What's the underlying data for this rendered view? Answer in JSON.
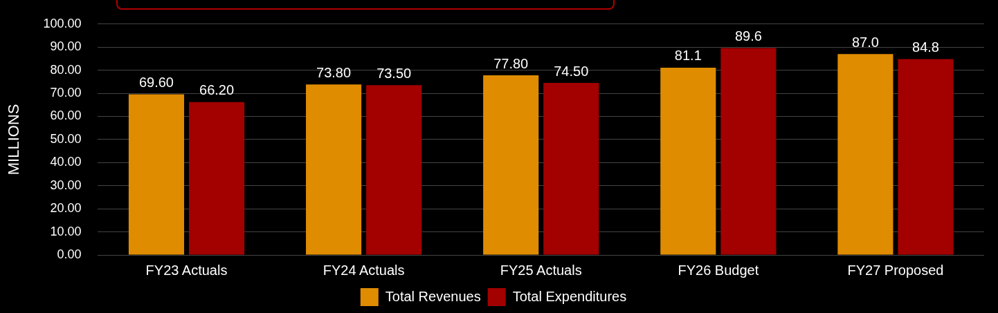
{
  "chart_data": {
    "type": "bar",
    "ylabel": "MILLIONS",
    "categories": [
      "FY23 Actuals",
      "FY24 Actuals",
      "FY25 Actuals",
      "FY26 Budget",
      "FY27 Proposed"
    ],
    "series": [
      {
        "name": "Total Revenues",
        "color": "#e08c00",
        "values": [
          69.6,
          73.8,
          77.8,
          81.1,
          87.0
        ],
        "value_labels": [
          "69.60",
          "73.80",
          "77.80",
          "81.1",
          "87.0"
        ]
      },
      {
        "name": "Total Expenditures",
        "color": "#a30000",
        "values": [
          66.2,
          73.5,
          74.5,
          89.6,
          84.8
        ],
        "value_labels": [
          "66.20",
          "73.50",
          "74.50",
          "89.6",
          "84.8"
        ]
      }
    ],
    "ylim": [
      0,
      100
    ],
    "yticks": [
      {
        "value": 0,
        "label": "0.00"
      },
      {
        "value": 10,
        "label": "10.00"
      },
      {
        "value": 20,
        "label": "20.00"
      },
      {
        "value": 30,
        "label": "30.00"
      },
      {
        "value": 40,
        "label": "40.00"
      },
      {
        "value": 50,
        "label": "50.00"
      },
      {
        "value": 60,
        "label": "60.00"
      },
      {
        "value": 70,
        "label": "70.00"
      },
      {
        "value": 80,
        "label": "80.00"
      },
      {
        "value": 90,
        "label": "90.00"
      },
      {
        "value": 100,
        "label": "100.00"
      }
    ],
    "grid": "y",
    "legend": "bottom"
  }
}
